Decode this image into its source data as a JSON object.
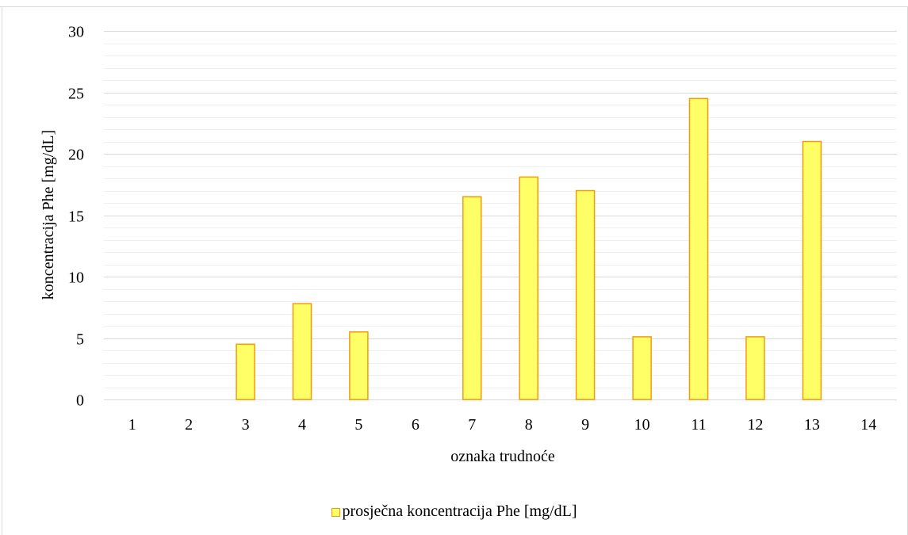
{
  "chart_data": {
    "type": "bar",
    "categories": [
      "1",
      "2",
      "3",
      "4",
      "5",
      "6",
      "7",
      "8",
      "9",
      "10",
      "11",
      "12",
      "13",
      "14"
    ],
    "series": [
      {
        "name": "prosječna koncentracija Phe [mg/dL]",
        "values": [
          0,
          0,
          4.5,
          7.8,
          5.5,
          0,
          16.5,
          18.1,
          17.0,
          5.1,
          24.5,
          5.1,
          21.0,
          0
        ]
      }
    ],
    "xlabel": "oznaka trudnoće",
    "ylabel": "koncentracija Phe [mg/dL]",
    "ylim": [
      0,
      30
    ],
    "yticks": [
      0,
      5,
      10,
      15,
      20,
      25,
      30
    ],
    "grid": "major and minor horizontal",
    "legend": "bottom",
    "colors": {
      "bar_fill": "#ffff66",
      "bar_stroke": "#f59a0c",
      "grid": "#d9d9d9",
      "frame": "#d9d9d9"
    }
  }
}
